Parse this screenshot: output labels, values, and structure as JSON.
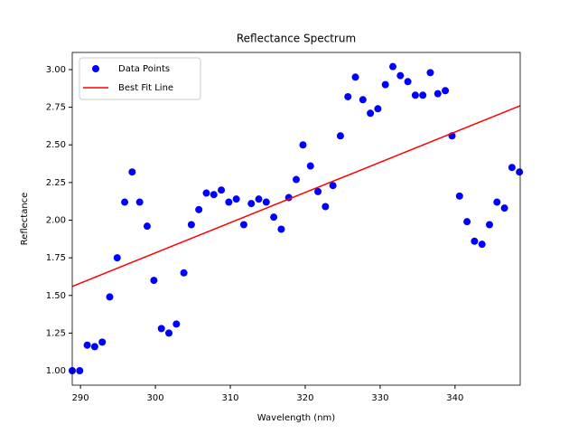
{
  "chart_data": {
    "type": "scatter",
    "title": "Reflectance Spectrum",
    "x_label": "Wavelength (nm)",
    "y_label": "Reflectance",
    "xlim": [
      288.9,
      348.7
    ],
    "ylim": [
      0.904,
      3.114
    ],
    "xticks": [
      290,
      300,
      310,
      320,
      330,
      340
    ],
    "yticks": [
      {
        "value": 1,
        "label": "1.00"
      },
      {
        "value": 1.25,
        "label": "1.25"
      },
      {
        "value": 1.5,
        "label": "1.50"
      },
      {
        "value": 1.75,
        "label": "1.75"
      },
      {
        "value": 2,
        "label": "2.00"
      },
      {
        "value": 2.25,
        "label": "2.25"
      },
      {
        "value": 2.5,
        "label": "2.50"
      },
      {
        "value": 2.75,
        "label": "2.75"
      },
      {
        "value": 3,
        "label": "3.00"
      }
    ],
    "legend": "upper left",
    "grid": false,
    "series": [
      {
        "name": "Data Points",
        "type": "scatter",
        "color": "#0000ff",
        "x": [
          288.9,
          289.9,
          290.9,
          291.9,
          292.9,
          293.9,
          294.9,
          295.9,
          296.9,
          297.9,
          298.9,
          299.8,
          300.8,
          301.8,
          302.8,
          303.8,
          304.8,
          305.8,
          306.8,
          307.8,
          308.8,
          309.8,
          310.8,
          311.8,
          312.8,
          313.8,
          314.8,
          315.8,
          316.8,
          317.8,
          318.8,
          319.7,
          320.7,
          321.7,
          322.7,
          323.7,
          324.7,
          325.7,
          326.7,
          327.7,
          328.7,
          329.7,
          330.7,
          331.7,
          332.7,
          333.7,
          334.7,
          335.7,
          336.7,
          337.7,
          338.7,
          339.6,
          340.6,
          341.6,
          342.6,
          343.6,
          344.6,
          345.6,
          346.6,
          347.6,
          348.6
        ],
        "values": [
          1.0,
          1.0,
          1.17,
          1.16,
          1.19,
          1.49,
          1.75,
          2.12,
          2.32,
          2.12,
          1.96,
          1.6,
          1.28,
          1.25,
          1.31,
          1.65,
          1.97,
          2.07,
          2.18,
          2.17,
          2.2,
          2.12,
          2.14,
          1.97,
          2.11,
          2.14,
          2.12,
          2.02,
          1.94,
          2.15,
          2.27,
          2.5,
          2.36,
          2.19,
          2.09,
          2.23,
          2.56,
          2.82,
          2.95,
          2.8,
          2.71,
          2.74,
          2.9,
          3.02,
          2.96,
          2.92,
          2.83,
          2.83,
          2.98,
          2.84,
          2.86,
          2.56,
          2.16,
          1.99,
          1.86,
          1.84,
          1.97,
          2.12,
          2.08,
          2.35,
          2.32
        ]
      },
      {
        "name": "Best Fit Line",
        "type": "line",
        "color": "#ff0000",
        "x": [
          288.9,
          348.7
        ],
        "values": [
          1.56,
          2.76
        ]
      }
    ]
  }
}
